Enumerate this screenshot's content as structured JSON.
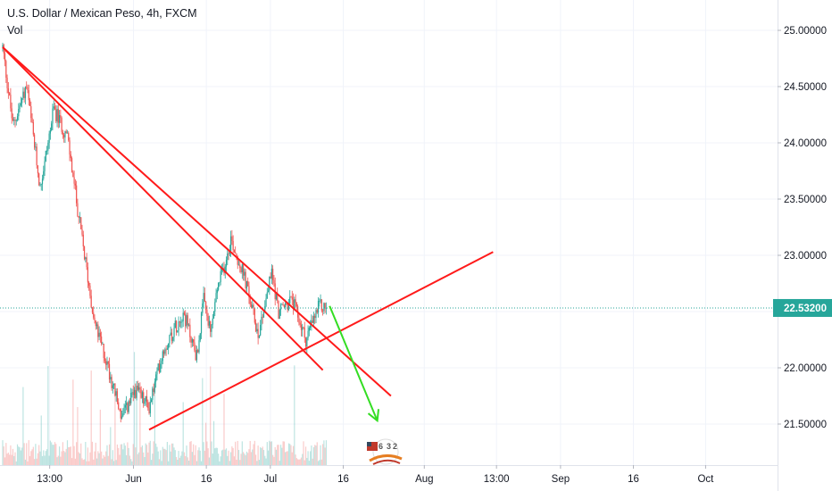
{
  "header": {
    "title": "U.S. Dollar / Mexican Peso, 4h, FXCM",
    "vol_label": "Vol"
  },
  "colors": {
    "up": "#26a69a",
    "down": "#ef5350",
    "trendline": "#ff1a1a",
    "arrow": "#33dd22",
    "price_line": "#26a69a",
    "price_tag_bg": "#26a69a"
  },
  "chart_data": {
    "type": "candlestick",
    "symbol": "USDMXN",
    "timeframe": "4h",
    "ylim": [
      21.2,
      25.35
    ],
    "y_ticks": [
      25.0,
      24.5,
      24.0,
      23.5,
      23.0,
      22.5,
      22.0,
      21.5
    ],
    "y_tick_labels": [
      "25.00000",
      "24.50000",
      "24.00000",
      "23.50000",
      "23.00000",
      "22.50000",
      "22.00000",
      "21.50000"
    ],
    "x_ticks": [
      "13:00",
      "Jun",
      "16",
      "Jul",
      "16",
      "Aug",
      "13:00",
      "Sep",
      "16",
      "Oct"
    ],
    "last_price": 22.532,
    "last_price_label": "22.53200",
    "price_path_days": [
      0,
      1.5,
      3.5,
      5.5,
      7.5,
      9.5,
      11.5,
      13.5,
      15.5,
      17.5,
      19.5,
      21.5,
      23.5,
      26.5,
      28.5,
      29.5,
      30.5,
      31.5,
      32.5,
      33.5,
      35.5,
      37.5,
      39.5,
      40.5,
      42.5,
      44.5,
      46.5,
      47.5
    ],
    "price_path_values": [
      24.85,
      24.15,
      24.5,
      23.6,
      24.3,
      24.05,
      23.2,
      22.4,
      22.0,
      21.55,
      21.8,
      21.65,
      22.15,
      22.5,
      22.1,
      22.6,
      22.3,
      22.7,
      22.9,
      23.15,
      22.8,
      22.3,
      22.85,
      22.5,
      22.6,
      22.25,
      22.55,
      22.53
    ],
    "trendlines": [
      {
        "from": [
          0,
          24.85
        ],
        "to": [
          57,
          21.75
        ]
      },
      {
        "from": [
          0,
          24.85
        ],
        "to": [
          47,
          21.98
        ]
      },
      {
        "from": [
          21.5,
          21.45
        ],
        "to": [
          72,
          23.03
        ]
      }
    ],
    "projection_arrow": {
      "from": [
        48,
        22.55
      ],
      "to": [
        55,
        21.53
      ]
    }
  }
}
